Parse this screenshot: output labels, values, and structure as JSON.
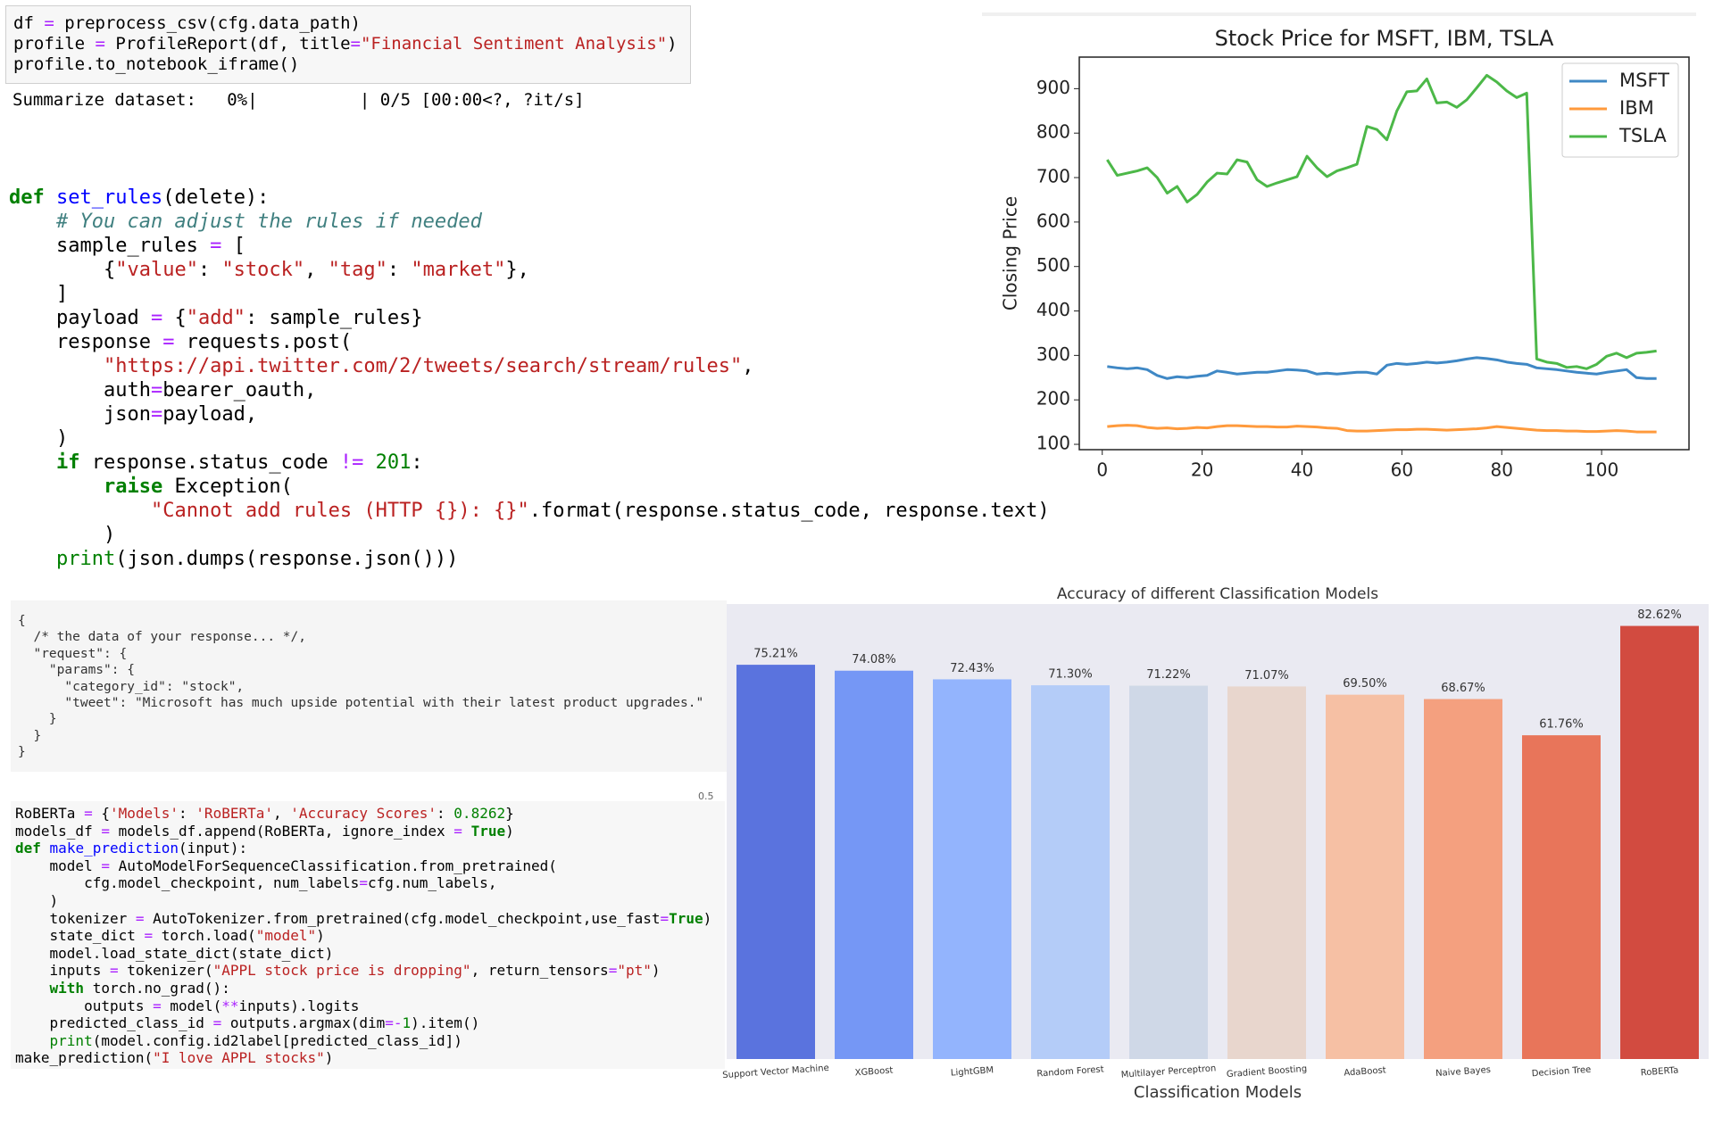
{
  "code_cells": [
    {
      "lines": [
        [
          [
            "df "
          ],
          [
            "=",
            "#aa22ff"
          ],
          [
            " preprocess_csv(cfg.data_path)"
          ]
        ],
        [
          [
            "profile "
          ],
          [
            "=",
            "#aa22ff"
          ],
          [
            " ProfileReport(df, title"
          ],
          [
            "=",
            "#aa22ff"
          ],
          [
            "\"Financial Sentiment Analysis\"",
            "#ba2121"
          ],
          [
            ")"
          ]
        ],
        [
          [
            "profile.to_notebook_iframe()"
          ]
        ]
      ]
    },
    {
      "lines": [
        [
          [
            "def",
            "#008000",
            "bold"
          ],
          [
            " "
          ],
          [
            "set_rules",
            "#0000ff"
          ],
          [
            "(delete):"
          ]
        ],
        [
          [
            "    "
          ],
          [
            "# You can adjust the rules if needed",
            "#408080",
            "italic"
          ]
        ],
        [
          [
            "    sample_rules "
          ],
          [
            "=",
            "#aa22ff"
          ],
          [
            " ["
          ]
        ],
        [
          [
            "        {"
          ],
          [
            "\"value\"",
            "#ba2121"
          ],
          [
            ": "
          ],
          [
            "\"stock\"",
            "#ba2121"
          ],
          [
            ", "
          ],
          [
            "\"tag\"",
            "#ba2121"
          ],
          [
            ": "
          ],
          [
            "\"market\"",
            "#ba2121"
          ],
          [
            "},"
          ]
        ],
        [
          [
            "    ]"
          ]
        ],
        [
          [
            "    payload "
          ],
          [
            "=",
            "#aa22ff"
          ],
          [
            " {"
          ],
          [
            "\"add\"",
            "#ba2121"
          ],
          [
            ": sample_rules}"
          ]
        ],
        [
          [
            "    response "
          ],
          [
            "=",
            "#aa22ff"
          ],
          [
            " requests.post("
          ]
        ],
        [
          [
            "        "
          ],
          [
            "\"https://api.twitter.com/2/tweets/search/stream/rules\"",
            "#ba2121"
          ],
          [
            ","
          ]
        ],
        [
          [
            "        auth"
          ],
          [
            "=",
            "#aa22ff"
          ],
          [
            "bearer_oauth,"
          ]
        ],
        [
          [
            "        json"
          ],
          [
            "=",
            "#aa22ff"
          ],
          [
            "payload,"
          ]
        ],
        [
          [
            "    )"
          ]
        ],
        [
          [
            "    "
          ],
          [
            "if",
            "#008000",
            "bold"
          ],
          [
            " response.status_code "
          ],
          [
            "!=",
            "#aa22ff"
          ],
          [
            " "
          ],
          [
            "201",
            "#008000"
          ],
          [
            ":"
          ]
        ],
        [
          [
            "        "
          ],
          [
            "raise",
            "#008000",
            "bold"
          ],
          [
            " Exception("
          ]
        ],
        [
          [
            "            "
          ],
          [
            "\"Cannot add rules (HTTP {}): {}\"",
            "#ba2121"
          ],
          [
            ".format(response.status_code, response.text)"
          ]
        ],
        [
          [
            "        )"
          ]
        ],
        [
          [
            "    "
          ],
          [
            "print",
            "#008000"
          ],
          [
            "(json.dumps(response.json()))"
          ]
        ]
      ]
    },
    {
      "lines": [
        [
          [
            "RoBERTa "
          ],
          [
            "=",
            "#aa22ff"
          ],
          [
            " {"
          ],
          [
            "'Models'",
            "#ba2121"
          ],
          [
            ": "
          ],
          [
            "'RoBERTa'",
            "#ba2121"
          ],
          [
            ", "
          ],
          [
            "'Accuracy Scores'",
            "#ba2121"
          ],
          [
            ": "
          ],
          [
            "0.8262",
            "#008000"
          ],
          [
            "}"
          ]
        ],
        [
          [
            "models_df "
          ],
          [
            "=",
            "#aa22ff"
          ],
          [
            " models_df.append(RoBERTa, ignore_index "
          ],
          [
            "=",
            "#aa22ff"
          ],
          [
            " "
          ],
          [
            "True",
            "#008000",
            "bold"
          ],
          [
            ")"
          ]
        ],
        [
          [
            "def",
            "#008000",
            "bold"
          ],
          [
            " "
          ],
          [
            "make_prediction",
            "#0000ff"
          ],
          [
            "(input):"
          ]
        ],
        [
          [
            "    model "
          ],
          [
            "=",
            "#aa22ff"
          ],
          [
            " AutoModelForSequenceClassification.from_pretrained("
          ]
        ],
        [
          [
            "        cfg.model_checkpoint, num_labels"
          ],
          [
            "=",
            "#aa22ff"
          ],
          [
            "cfg.num_labels,"
          ]
        ],
        [
          [
            "    )"
          ]
        ],
        [
          [
            "    tokenizer "
          ],
          [
            "=",
            "#aa22ff"
          ],
          [
            " AutoTokenizer.from_pretrained(cfg.model_checkpoint,use_fast"
          ],
          [
            "=",
            "#aa22ff"
          ],
          [
            "True",
            "#008000",
            "bold"
          ],
          [
            ")"
          ]
        ],
        [
          [
            "    state_dict "
          ],
          [
            "=",
            "#aa22ff"
          ],
          [
            " torch.load("
          ],
          [
            "\"model\"",
            "#ba2121"
          ],
          [
            ")"
          ]
        ],
        [
          [
            "    model.load_state_dict(state_dict)"
          ]
        ],
        [
          [
            "    inputs "
          ],
          [
            "=",
            "#aa22ff"
          ],
          [
            " tokenizer("
          ],
          [
            "\"APPL stock price is dropping\"",
            "#ba2121"
          ],
          [
            ", return_tensors"
          ],
          [
            "=",
            "#aa22ff"
          ],
          [
            "\"pt\"",
            "#ba2121"
          ],
          [
            ")"
          ]
        ],
        [
          [
            "    "
          ],
          [
            "with",
            "#008000",
            "bold"
          ],
          [
            " torch.no_grad():"
          ]
        ],
        [
          [
            "        outputs "
          ],
          [
            "=",
            "#aa22ff"
          ],
          [
            " model("
          ],
          [
            "**",
            "#aa22ff"
          ],
          [
            "inputs).logits"
          ]
        ],
        [
          [
            "    predicted_class_id "
          ],
          [
            "=",
            "#aa22ff"
          ],
          [
            " outputs.argmax(dim"
          ],
          [
            "=-",
            "#aa22ff"
          ],
          [
            "1",
            "#008000"
          ],
          [
            ").item()"
          ]
        ],
        [
          [
            "    "
          ],
          [
            "print",
            "#008000"
          ],
          [
            "(model.config.id2label[predicted_class_id])"
          ]
        ],
        [
          [
            "make_prediction("
          ],
          [
            "\"I love APPL stocks\"",
            "#ba2121"
          ],
          [
            ")"
          ]
        ]
      ]
    }
  ],
  "output_text": "Summarize dataset:   0%|          | 0/5 [00:00<?, ?it/s]",
  "json_block": {
    "lines": [
      "{",
      "  /* the data of your response... */,",
      "  \"request\": {",
      "    \"params\": {",
      "      \"category_id\": \"stock\",",
      "      \"tweet\": \"Microsoft has much upside potential with their latest product upgrades.\"",
      "    }",
      "  }",
      "}"
    ]
  },
  "axis_fragment": "0.5",
  "chart_data": [
    {
      "type": "line",
      "title": "Stock Price for MSFT, IBM, TSLA",
      "ylabel": "Closing Price",
      "x": [
        1,
        3,
        5,
        7,
        9,
        11,
        13,
        15,
        17,
        19,
        21,
        23,
        25,
        27,
        29,
        31,
        33,
        35,
        37,
        39,
        41,
        43,
        45,
        47,
        49,
        51,
        53,
        55,
        57,
        59,
        61,
        63,
        65,
        67,
        69,
        71,
        73,
        75,
        77,
        79,
        81,
        83,
        85,
        87,
        89,
        91,
        93,
        95,
        97,
        99,
        101,
        103,
        105,
        107,
        109,
        111
      ],
      "series": [
        {
          "name": "MSFT",
          "color": "#3f88c5",
          "values": [
            275,
            272,
            270,
            272,
            268,
            255,
            248,
            252,
            250,
            253,
            255,
            265,
            262,
            258,
            260,
            262,
            262,
            265,
            268,
            267,
            265,
            258,
            260,
            258,
            260,
            262,
            262,
            258,
            278,
            282,
            280,
            282,
            285,
            283,
            285,
            288,
            292,
            295,
            293,
            290,
            285,
            282,
            280,
            272,
            270,
            268,
            265,
            262,
            260,
            258,
            262,
            265,
            268,
            250,
            248,
            248
          ]
        },
        {
          "name": "IBM",
          "color": "#ff9a3c",
          "values": [
            140,
            142,
            143,
            142,
            138,
            136,
            137,
            135,
            136,
            138,
            137,
            140,
            142,
            142,
            141,
            140,
            140,
            139,
            139,
            141,
            140,
            139,
            137,
            136,
            131,
            130,
            130,
            131,
            132,
            133,
            133,
            134,
            134,
            133,
            132,
            133,
            134,
            135,
            137,
            140,
            138,
            136,
            134,
            132,
            131,
            131,
            130,
            130,
            129,
            129,
            130,
            131,
            130,
            128,
            128,
            128
          ]
        },
        {
          "name": "TSLA",
          "color": "#4cb848",
          "values": [
            740,
            705,
            710,
            715,
            722,
            700,
            665,
            680,
            645,
            662,
            690,
            710,
            708,
            740,
            735,
            695,
            680,
            688,
            695,
            702,
            748,
            722,
            702,
            715,
            722,
            730,
            815,
            808,
            785,
            850,
            893,
            895,
            922,
            868,
            870,
            858,
            875,
            902,
            930,
            915,
            895,
            880,
            890,
            292,
            285,
            282,
            273,
            275,
            270,
            280,
            298,
            305,
            295,
            305,
            307,
            310
          ]
        }
      ],
      "xlim": [
        -4.6,
        117.5
      ],
      "ylim": [
        88,
        971
      ],
      "xticks": [
        0,
        20,
        40,
        60,
        80,
        100
      ],
      "yticks": [
        100,
        200,
        300,
        400,
        500,
        600,
        700,
        800,
        900
      ],
      "legend": "upper right"
    },
    {
      "type": "bar",
      "title": "Accuracy of different Classification Models",
      "xlabel": "Classification Models",
      "categories": [
        "Support Vector Machine",
        "XGBoost",
        "LightGBM",
        "Random Forest",
        "Multilayer Perceptron",
        "Gradient Boosting",
        "AdaBoost",
        "Naive Bayes",
        "Decision Tree",
        "RoBERTa"
      ],
      "values": [
        75.21,
        74.08,
        72.43,
        71.3,
        71.22,
        71.07,
        69.5,
        68.67,
        61.76,
        82.62
      ],
      "value_labels": [
        "75.21%",
        "74.08%",
        "72.43%",
        "71.30%",
        "71.22%",
        "71.07%",
        "69.50%",
        "68.67%",
        "61.76%",
        "82.62%"
      ],
      "colors": [
        "#5a73de",
        "#7597f5",
        "#93b4fd",
        "#b4ccf8",
        "#cfd8e7",
        "#e8d6cd",
        "#f6c0a4",
        "#f4a07f",
        "#e8755a",
        "#d24b40"
      ],
      "ylim": [
        0,
        86.8
      ]
    }
  ]
}
